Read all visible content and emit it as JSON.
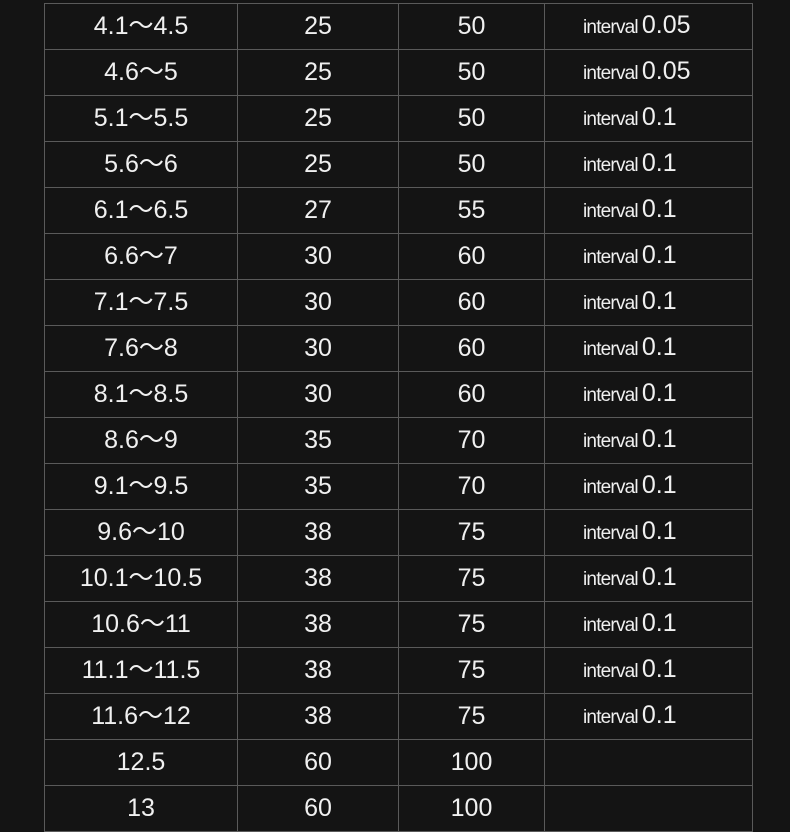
{
  "table": {
    "rows": [
      {
        "range": "4.1～4.5",
        "a": "25",
        "b": "50",
        "note_label": "interval",
        "note_value": "0.05"
      },
      {
        "range": "4.6～5",
        "a": "25",
        "b": "50",
        "note_label": "interval",
        "note_value": "0.05"
      },
      {
        "range": "5.1～5.5",
        "a": "25",
        "b": "50",
        "note_label": "interval",
        "note_value": "0.1"
      },
      {
        "range": "5.6～6",
        "a": "25",
        "b": "50",
        "note_label": "interval",
        "note_value": "0.1"
      },
      {
        "range": "6.1～6.5",
        "a": "27",
        "b": "55",
        "note_label": "interval",
        "note_value": "0.1"
      },
      {
        "range": "6.6～7",
        "a": "30",
        "b": "60",
        "note_label": "interval",
        "note_value": "0.1"
      },
      {
        "range": "7.1～7.5",
        "a": "30",
        "b": "60",
        "note_label": "interval",
        "note_value": "0.1"
      },
      {
        "range": "7.6～8",
        "a": "30",
        "b": "60",
        "note_label": "interval",
        "note_value": "0.1"
      },
      {
        "range": "8.1～8.5",
        "a": "30",
        "b": "60",
        "note_label": "interval",
        "note_value": "0.1"
      },
      {
        "range": "8.6～9",
        "a": "35",
        "b": "70",
        "note_label": "interval",
        "note_value": "0.1"
      },
      {
        "range": "9.1～9.5",
        "a": "35",
        "b": "70",
        "note_label": "interval",
        "note_value": "0.1"
      },
      {
        "range": "9.6～10",
        "a": "38",
        "b": "75",
        "note_label": "interval",
        "note_value": "0.1"
      },
      {
        "range": "10.1～10.5",
        "a": "38",
        "b": "75",
        "note_label": "interval",
        "note_value": "0.1"
      },
      {
        "range": "10.6～11",
        "a": "38",
        "b": "75",
        "note_label": "interval",
        "note_value": "0.1"
      },
      {
        "range": "11.1～11.5",
        "a": "38",
        "b": "75",
        "note_label": "interval",
        "note_value": "0.1"
      },
      {
        "range": "11.6～12",
        "a": "38",
        "b": "75",
        "note_label": "interval",
        "note_value": "0.1"
      },
      {
        "range": "12.5",
        "a": "60",
        "b": "100",
        "note_label": "",
        "note_value": ""
      },
      {
        "range": "13",
        "a": "60",
        "b": "100",
        "note_label": "",
        "note_value": ""
      }
    ]
  }
}
